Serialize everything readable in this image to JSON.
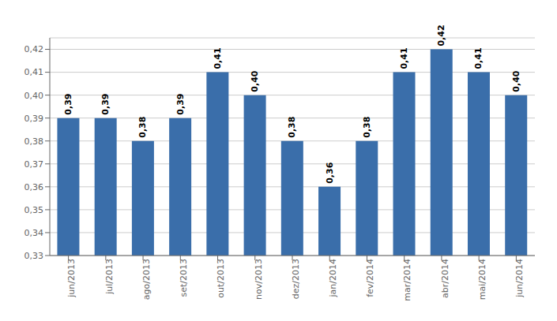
{
  "chart_data": {
    "type": "bar",
    "categories": [
      "jun/2013",
      "jul/2013",
      "ago/2013",
      "set/2013",
      "out/2013",
      "nov/2013",
      "dez/2013",
      "jan/2014",
      "fev/2014",
      "mar/2014",
      "abr/2014",
      "mai/2014",
      "jun/2014"
    ],
    "values": [
      0.39,
      0.39,
      0.38,
      0.39,
      0.41,
      0.4,
      0.38,
      0.36,
      0.38,
      0.41,
      0.42,
      0.41,
      0.4
    ],
    "value_labels": [
      "0,39",
      "0,39",
      "0,38",
      "0,39",
      "0,41",
      "0,40",
      "0,38",
      "0,36",
      "0,38",
      "0,41",
      "0,42",
      "0,41",
      "0,40"
    ],
    "color": "#3A6EAA",
    "ylim": [
      0.33,
      0.425
    ],
    "yticks": [
      {
        "value": 0.33,
        "label": "0,33"
      },
      {
        "value": 0.34,
        "label": "0,34"
      },
      {
        "value": 0.35,
        "label": "0,35"
      },
      {
        "value": 0.36,
        "label": "0,36"
      },
      {
        "value": 0.37,
        "label": "0,37"
      },
      {
        "value": 0.38,
        "label": "0,38"
      },
      {
        "value": 0.39,
        "label": "0,39"
      },
      {
        "value": 0.4,
        "label": "0,40"
      },
      {
        "value": 0.41,
        "label": "0,41"
      },
      {
        "value": 0.42,
        "label": "0,42"
      }
    ],
    "grid": true,
    "data_labels": true
  }
}
